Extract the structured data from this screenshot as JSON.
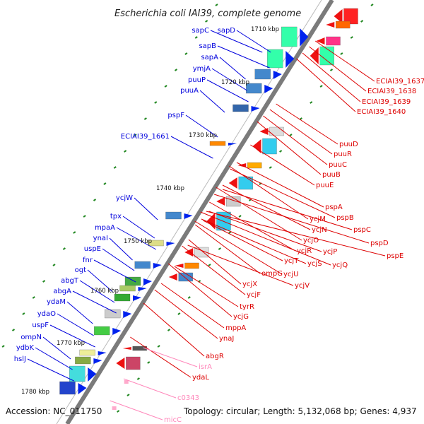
{
  "title": "Escherichia coli IAI39, complete genome",
  "footer": {
    "accession": "Accession: NC_011750",
    "topology": "Topology: circular; Length: 5,132,068 bp; Genes: 4,937"
  },
  "colors": {
    "forward_label": "#0000dd",
    "reverse_label": "#dd0000",
    "rna_label": "#ff88bb",
    "backbone": "#777777",
    "tick": "#228822"
  },
  "kbp_labels": [
    "1710 kbp",
    "1720 kbp",
    "1730 kbp",
    "1740 kbp",
    "1750 kbp",
    "1760 kbp",
    "1770 kbp",
    "1780 kbp"
  ],
  "forward_labels": [
    "sapC",
    "sapD",
    "sapB",
    "sapA",
    "ymjA",
    "puuP",
    "puuA",
    "pspF",
    "ECIAI39_1661",
    "ycjW",
    "tpx",
    "mpaA",
    "ynaI",
    "uspE",
    "fnr",
    "ogt",
    "abgT",
    "abgA",
    "ydaM",
    "ydaO",
    "uspF",
    "ompN",
    "ydbK",
    "hslJ"
  ],
  "reverse_labels": [
    "ECIAI39_1637",
    "ECIAI39_1638",
    "ECIAI39_1639",
    "ECIAI39_1640",
    "puuD",
    "puuR",
    "puuC",
    "puuB",
    "puuE",
    "pspA",
    "pspB",
    "ycjM",
    "pspC",
    "ycjN",
    "pspD",
    "ycjO",
    "ycjP",
    "pspE",
    "ycjR",
    "ycjQ",
    "ycjT",
    "ycjS",
    "ompG",
    "ycjU",
    "ycjV",
    "ycjX",
    "ycjF",
    "ycjG",
    "tyrR",
    "mppA",
    "ynaJ",
    "abgR",
    "ydaL"
  ],
  "rna_labels": [
    "isrA",
    "c0343",
    "micC"
  ]
}
